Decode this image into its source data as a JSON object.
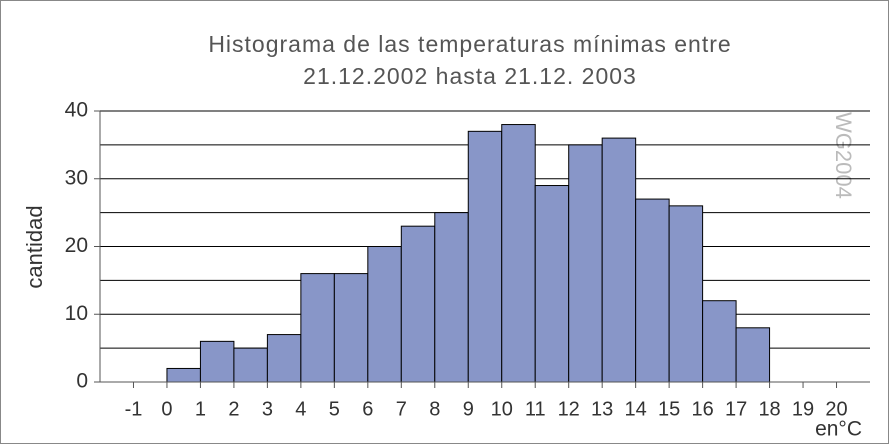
{
  "chart_data": {
    "type": "histogram",
    "title": [
      "Histograma de las temperaturas mínimas entre",
      "21.12.2002 hasta 21.12. 2003"
    ],
    "y_label": "cantidad",
    "x_label": "en°C",
    "watermark": "WG2004",
    "bins": [
      0,
      1,
      2,
      3,
      4,
      5,
      6,
      7,
      8,
      9,
      10,
      11,
      12,
      13,
      14,
      15,
      16,
      17,
      18
    ],
    "values": [
      2,
      6,
      5,
      7,
      16,
      16,
      20,
      23,
      25,
      37,
      38,
      29,
      35,
      36,
      27,
      26,
      12,
      8
    ],
    "color": "#8896c8",
    "xlim": [
      -2,
      21
    ],
    "xticks": [
      -1,
      0,
      1,
      2,
      3,
      4,
      5,
      6,
      7,
      8,
      9,
      10,
      11,
      12,
      13,
      14,
      15,
      16,
      17,
      18,
      19,
      20
    ],
    "ylim": [
      0,
      40
    ],
    "yticks": [
      0,
      10,
      20,
      30,
      40
    ],
    "y_minor_grid": [
      5,
      15,
      25,
      35
    ],
    "grid": true
  }
}
